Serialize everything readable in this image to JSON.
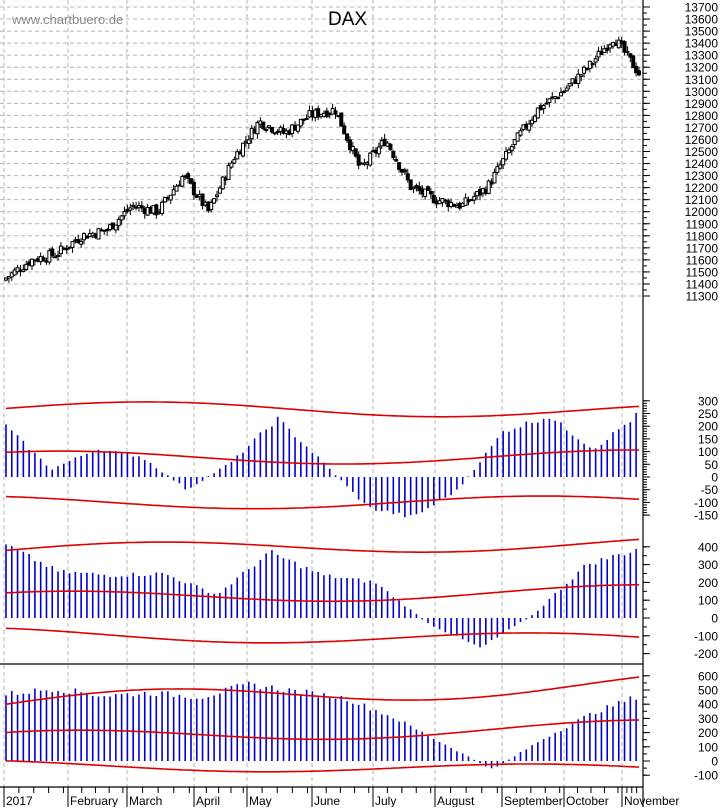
{
  "header": {
    "watermark": "www.chartbuero.de",
    "title": "DAX"
  },
  "colors": {
    "background": "#ffffff",
    "grid": "#b4b4b4",
    "candle": "#000000",
    "histogram": "#0000cc",
    "bands": "#dd0000",
    "axis": "#000000"
  },
  "chart_data": [
    {
      "type": "candlestick",
      "title": "DAX",
      "panel": "price",
      "xlabel": "",
      "ylabel": "",
      "ylim": [
        11300,
        13700
      ],
      "yticks": [
        11300,
        11400,
        11500,
        11600,
        11700,
        11800,
        11900,
        12000,
        12100,
        12200,
        12300,
        12400,
        12500,
        12600,
        12700,
        12800,
        12900,
        13000,
        13100,
        13200,
        13300,
        13400,
        13500,
        13600,
        13700
      ],
      "x_tick_labels": [
        "2017",
        "February",
        "March",
        "April",
        "May",
        "June",
        "July",
        "August",
        "September",
        "October",
        "November"
      ],
      "grid": true,
      "approx_close_path": [
        {
          "month": "Jan-start",
          "value": 11450
        },
        {
          "month": "Jan-mid",
          "value": 11600
        },
        {
          "month": "Jan-end",
          "value": 11650
        },
        {
          "month": "Feb-mid",
          "value": 11800
        },
        {
          "month": "Feb-end",
          "value": 11850
        },
        {
          "month": "Mar-start",
          "value": 12050
        },
        {
          "month": "Mar-mid",
          "value": 12000
        },
        {
          "month": "Mar-end",
          "value": 12300
        },
        {
          "month": "Apr-mid",
          "value": 12000
        },
        {
          "month": "Apr-end",
          "value": 12450
        },
        {
          "month": "May-mid",
          "value": 12750
        },
        {
          "month": "May-end",
          "value": 12650
        },
        {
          "month": "Jun-start",
          "value": 12800
        },
        {
          "month": "Jun-mid",
          "value": 12850
        },
        {
          "month": "Jun-end",
          "value": 12350
        },
        {
          "month": "Jul-mid",
          "value": 12600
        },
        {
          "month": "Jul-end",
          "value": 12200
        },
        {
          "month": "Aug-mid",
          "value": 12100
        },
        {
          "month": "Aug-end",
          "value": 12050
        },
        {
          "month": "Sep-start",
          "value": 12200
        },
        {
          "month": "Sep-mid",
          "value": 12550
        },
        {
          "month": "Sep-end",
          "value": 12850
        },
        {
          "month": "Oct-mid",
          "value": 13000
        },
        {
          "month": "Oct-end",
          "value": 13200
        },
        {
          "month": "Nov-start",
          "value": 13450
        },
        {
          "month": "Nov-latest",
          "value": 13150
        }
      ],
      "high": 13530,
      "low": 11420
    },
    {
      "type": "bar",
      "panel": "oscillator-1",
      "title": "",
      "ylim": [
        -175,
        310
      ],
      "yticks": [
        -150,
        -100,
        -50,
        0,
        50,
        100,
        150,
        200,
        250,
        300
      ],
      "series_notes": "Blue histogram with red upper/middle/lower envelope bands",
      "approx_histogram": [
        {
          "month": "Jan",
          "value": 200
        },
        {
          "month": "Feb",
          "value": 30
        },
        {
          "month": "Feb-mid",
          "value": 110
        },
        {
          "month": "Mar",
          "value": 80
        },
        {
          "month": "Apr-start",
          "value": -50
        },
        {
          "month": "Apr-mid",
          "value": 60
        },
        {
          "month": "May-mid",
          "value": 230
        },
        {
          "month": "Jun",
          "value": 60
        },
        {
          "month": "Jul",
          "value": -120
        },
        {
          "month": "Aug",
          "value": -160
        },
        {
          "month": "Aug-end",
          "value": -50
        },
        {
          "month": "Sep-mid",
          "value": 180
        },
        {
          "month": "Oct-start",
          "value": 240
        },
        {
          "month": "Oct-end",
          "value": 110
        },
        {
          "month": "Nov",
          "value": 250
        }
      ],
      "bands": {
        "upper": {
          "start": 270,
          "end": 262
        },
        "middle": {
          "start": 75,
          "end": 80
        },
        "lower": {
          "start": -100,
          "end": -100
        }
      }
    },
    {
      "type": "bar",
      "panel": "oscillator-2",
      "title": "",
      "ylim": [
        -240,
        450
      ],
      "yticks": [
        -200,
        -100,
        0,
        100,
        200,
        300,
        400
      ],
      "approx_histogram": [
        {
          "month": "Jan",
          "value": 410
        },
        {
          "month": "Feb",
          "value": 260
        },
        {
          "month": "Mar",
          "value": 240
        },
        {
          "month": "Apr",
          "value": 250
        },
        {
          "month": "Apr-end",
          "value": 130
        },
        {
          "month": "May-mid",
          "value": 370
        },
        {
          "month": "Jun",
          "value": 240
        },
        {
          "month": "Jun-end",
          "value": 200
        },
        {
          "month": "Jul",
          "value": -30
        },
        {
          "month": "Aug-mid",
          "value": -170
        },
        {
          "month": "Sep",
          "value": 20
        },
        {
          "month": "Oct",
          "value": 300
        },
        {
          "month": "Nov",
          "value": 390
        }
      ],
      "bands": {
        "upper": {
          "start": 380,
          "end": 420
        },
        "middle": {
          "start": 110,
          "end": 150
        },
        "lower": {
          "start": -90,
          "end": -125
        }
      }
    },
    {
      "type": "bar",
      "panel": "oscillator-3",
      "title": "",
      "ylim": [
        -120,
        640
      ],
      "yticks": [
        -100,
        0,
        100,
        200,
        300,
        400,
        500,
        600
      ],
      "approx_histogram": [
        {
          "month": "Jan",
          "value": 470
        },
        {
          "month": "Feb",
          "value": 510
        },
        {
          "month": "Mar",
          "value": 460
        },
        {
          "month": "Apr",
          "value": 480
        },
        {
          "month": "May",
          "value": 450
        },
        {
          "month": "May-mid",
          "value": 540
        },
        {
          "month": "Jun",
          "value": 490
        },
        {
          "month": "Jun-end",
          "value": 440
        },
        {
          "month": "Jul",
          "value": 300
        },
        {
          "month": "Aug",
          "value": 120
        },
        {
          "month": "Sep",
          "value": -60
        },
        {
          "month": "Oct",
          "value": 150
        },
        {
          "month": "Oct-end",
          "value": 330
        },
        {
          "month": "Nov",
          "value": 460
        }
      ],
      "bands": {
        "upper": {
          "start": 400,
          "end": 550
        },
        "middle": {
          "start": 160,
          "end": 240
        },
        "lower": {
          "start": -30,
          "end": -60
        }
      }
    }
  ],
  "axes": {
    "price_ticks": [
      "13700",
      "13600",
      "13500",
      "13400",
      "13300",
      "13200",
      "13100",
      "13000",
      "12900",
      "12800",
      "12700",
      "12600",
      "12500",
      "12400",
      "12300",
      "12200",
      "12100",
      "12000",
      "11900",
      "11800",
      "11700",
      "11600",
      "11500",
      "11400",
      "11300"
    ],
    "osc1_ticks": [
      "300",
      "250",
      "200",
      "150",
      "100",
      "50",
      "0",
      "-50",
      "-100",
      "-150"
    ],
    "osc2_ticks": [
      "400",
      "300",
      "200",
      "100",
      "0",
      "-100",
      "-200"
    ],
    "osc3_ticks": [
      "600",
      "500",
      "400",
      "300",
      "200",
      "100",
      "0",
      "-100"
    ],
    "months": [
      "2017",
      "February",
      "March",
      "April",
      "May",
      "June",
      "July",
      "August",
      "September",
      "October",
      "November"
    ]
  }
}
